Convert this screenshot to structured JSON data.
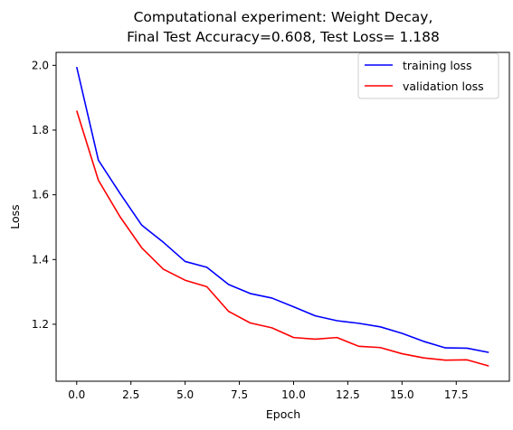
{
  "chart_data": {
    "type": "line",
    "title_line1": "Computational experiment: Weight Decay,",
    "title_line2": "Final Test Accuracy=0.608, Test Loss= 1.188",
    "xlabel": "Epoch",
    "ylabel": "Loss",
    "xlim": [
      -0.95,
      19.95
    ],
    "ylim": [
      1.024,
      2.04
    ],
    "x_ticks": [
      0.0,
      2.5,
      5.0,
      7.5,
      10.0,
      12.5,
      15.0,
      17.5
    ],
    "x_tick_labels": [
      "0.0",
      "2.5",
      "5.0",
      "7.5",
      "10.0",
      "12.5",
      "15.0",
      "17.5"
    ],
    "y_ticks": [
      1.2,
      1.4,
      1.6,
      1.8,
      2.0
    ],
    "y_tick_labels": [
      "1.2",
      "1.4",
      "1.6",
      "1.8",
      "2.0"
    ],
    "grid": false,
    "legend_position": "top-right",
    "x": [
      0,
      1,
      2,
      3,
      4,
      5,
      6,
      7,
      8,
      9,
      10,
      11,
      12,
      13,
      14,
      15,
      16,
      17,
      18,
      19
    ],
    "series": [
      {
        "name": "training loss",
        "color": "#0000ff",
        "values": [
          1.995,
          1.707,
          1.604,
          1.506,
          1.453,
          1.394,
          1.376,
          1.323,
          1.295,
          1.281,
          1.254,
          1.226,
          1.211,
          1.203,
          1.192,
          1.172,
          1.147,
          1.127,
          1.126,
          1.113
        ]
      },
      {
        "name": "validation loss",
        "color": "#ff0000",
        "values": [
          1.86,
          1.645,
          1.532,
          1.436,
          1.37,
          1.336,
          1.316,
          1.24,
          1.204,
          1.189,
          1.159,
          1.154,
          1.159,
          1.132,
          1.128,
          1.109,
          1.096,
          1.089,
          1.09,
          1.071
        ]
      }
    ]
  }
}
